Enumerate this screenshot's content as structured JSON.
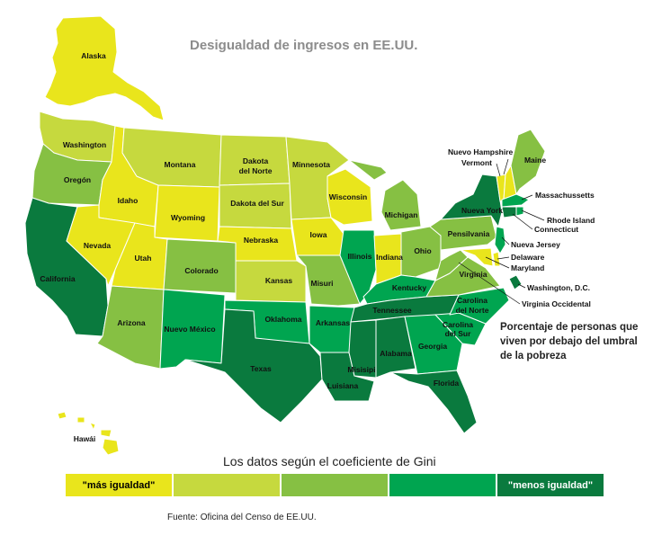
{
  "title": "Desigualdad de ingresos en EE.UU.",
  "note": "Porcentaje de personas que viven por debajo del umbral de la pobreza",
  "legend": {
    "title": "Los datos según el coeficiente de Gini",
    "items": [
      {
        "label": "\"más igualdad\"",
        "color": "#e9e51c"
      },
      {
        "label": "",
        "color": "#c6d93e"
      },
      {
        "label": "",
        "color": "#86c043"
      },
      {
        "label": "",
        "color": "#00a550"
      },
      {
        "label": "\"menos igualdad\"",
        "color": "#0a7a3e"
      }
    ]
  },
  "source": "Fuente: Oficina del Censo de EE.UU.",
  "states": {
    "alaska": "Alaska",
    "hawaii": "Hawái",
    "washington": "Washington",
    "oregon": "Oregón",
    "california": "California",
    "idaho": "Idaho",
    "nevada": "Nevada",
    "montana": "Montana",
    "wyoming": "Wyoming",
    "utah": "Utah",
    "arizona": "Arizona",
    "colorado": "Colorado",
    "new_mexico": "Nuevo México",
    "north_dakota": "Dakota del Norte",
    "south_dakota": "Dakota del Sur",
    "nebraska": "Nebraska",
    "kansas": "Kansas",
    "oklahoma": "Oklahoma",
    "texas": "Texas",
    "minnesota": "Minnesota",
    "iowa": "Iowa",
    "missouri": "Misuri",
    "arkansas": "Arkansas",
    "louisiana": "Luisiana",
    "wisconsin": "Wisconsin",
    "illinois": "Illinois",
    "michigan": "Michigan",
    "indiana": "Indiana",
    "ohio": "Ohio",
    "kentucky": "Kentucky",
    "tennessee": "Tennessee",
    "mississippi": "Misisipi",
    "alabama": "Alabama",
    "georgia": "Georgia",
    "florida": "Florida",
    "south_carolina": "Carolina del Sur",
    "north_carolina": "Carolina del Norte",
    "virginia": "Virginia",
    "west_virginia": "Virginia Occidental",
    "pennsylvania": "Pensilvania",
    "new_york": "Nueva York",
    "maine": "Maine",
    "new_hampshire": "Nuevo Hampshire",
    "vermont": "Vermont",
    "massachusetts": "Massachussetts",
    "rhode_island": "Rhode Island",
    "connecticut": "Connecticut",
    "new_jersey": "Nueva Jersey",
    "delaware": "Delaware",
    "maryland": "Maryland",
    "dc": "Washington, D.C."
  },
  "state_tier": {
    "alaska": 1,
    "hawaii": 1,
    "washington": 2,
    "oregon": 3,
    "california": 5,
    "idaho": 1,
    "nevada": 1,
    "montana": 2,
    "wyoming": 1,
    "utah": 1,
    "arizona": 3,
    "colorado": 3,
    "new_mexico": 4,
    "north_dakota": 2,
    "south_dakota": 2,
    "nebraska": 1,
    "kansas": 2,
    "oklahoma": 4,
    "texas": 5,
    "minnesota": 2,
    "iowa": 1,
    "missouri": 3,
    "arkansas": 4,
    "louisiana": 5,
    "wisconsin": 1,
    "illinois": 4,
    "michigan": 3,
    "indiana": 1,
    "ohio": 3,
    "kentucky": 4,
    "tennessee": 5,
    "mississippi": 5,
    "alabama": 5,
    "georgia": 4,
    "florida": 5,
    "south_carolina": 4,
    "north_carolina": 4,
    "virginia": 3,
    "west_virginia": 3,
    "pennsylvania": 3,
    "new_york": 5,
    "maine": 3,
    "new_hampshire": 1,
    "vermont": 1,
    "massachusetts": 4,
    "rhode_island": 4,
    "connecticut": 5,
    "new_jersey": 4,
    "delaware": 1,
    "maryland": 1,
    "dc": 5
  }
}
